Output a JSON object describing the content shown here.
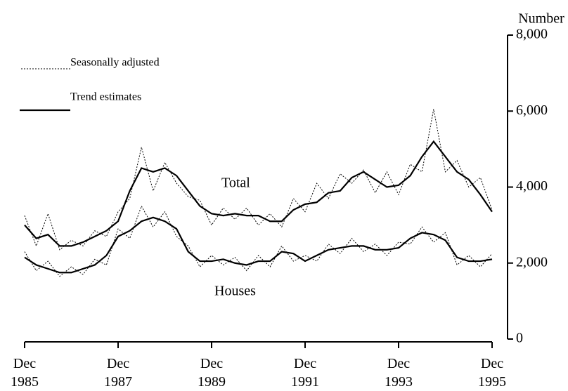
{
  "chart_data": {
    "type": "line",
    "y_label": "Number",
    "x": [
      1985.92,
      1986.17,
      1986.42,
      1986.67,
      1986.92,
      1987.17,
      1987.42,
      1987.67,
      1987.92,
      1988.17,
      1988.42,
      1988.67,
      1988.92,
      1989.17,
      1989.42,
      1989.67,
      1989.92,
      1990.17,
      1990.42,
      1990.67,
      1990.92,
      1991.17,
      1991.42,
      1991.67,
      1991.92,
      1992.17,
      1992.42,
      1992.67,
      1992.92,
      1993.17,
      1993.42,
      1993.67,
      1993.92,
      1994.17,
      1994.42,
      1994.67,
      1994.92,
      1995.17,
      1995.42,
      1995.67,
      1995.92
    ],
    "xlim": [
      1985.92,
      1995.92
    ],
    "xticks": [
      {
        "value": 1985.92,
        "label": "Dec 1985"
      },
      {
        "value": 1987.92,
        "label": "Dec 1987"
      },
      {
        "value": 1989.92,
        "label": "Dec 1989"
      },
      {
        "value": 1991.92,
        "label": "Dec 1991"
      },
      {
        "value": 1993.92,
        "label": "Dec 1993"
      },
      {
        "value": 1995.92,
        "label": "Dec 1995"
      }
    ],
    "ylim": [
      0,
      8000
    ],
    "yticks": [
      0,
      {
        "value": 2000,
        "label": "2,000"
      },
      {
        "value": 4000,
        "label": "4,000"
      },
      {
        "value": 6000,
        "label": "6,000"
      },
      {
        "value": 8000,
        "label": "8,000"
      }
    ],
    "legend": [
      {
        "name": "Seasonally adjusted",
        "style": "dotted"
      },
      {
        "name": "Trend estimates",
        "style": "solid"
      }
    ],
    "annotations": [
      "Total",
      "Houses"
    ],
    "series": [
      {
        "style": "dotted",
        "color": "#000000",
        "values": [
          3250,
          2450,
          3300,
          2350,
          2600,
          2450,
          2850,
          2700,
          3350,
          3700,
          5050,
          3900,
          4650,
          4100,
          3750,
          3650,
          3000,
          3450,
          3150,
          3450,
          3000,
          3300,
          2950,
          3700,
          3350,
          4100,
          3700,
          4350,
          4100,
          4450,
          3850,
          4400,
          3800,
          4600,
          4400,
          6050,
          4400,
          4700,
          4000,
          4250,
          3400
        ]
      },
      {
        "style": "solid",
        "color": "#000000",
        "values": [
          3000,
          2650,
          2750,
          2450,
          2450,
          2550,
          2700,
          2850,
          3100,
          3900,
          4500,
          4400,
          4500,
          4300,
          3900,
          3500,
          3300,
          3250,
          3300,
          3250,
          3250,
          3100,
          3100,
          3400,
          3550,
          3600,
          3850,
          3900,
          4250,
          4400,
          4200,
          4000,
          4050,
          4300,
          4800,
          5200,
          4800,
          4400,
          4200,
          3800,
          3350
        ]
      },
      {
        "style": "dotted",
        "color": "#000000",
        "values": [
          2300,
          1800,
          2050,
          1650,
          1900,
          1700,
          2100,
          1950,
          2900,
          2650,
          3500,
          2950,
          3350,
          2700,
          2450,
          1900,
          2200,
          1950,
          2150,
          1800,
          2200,
          1900,
          2450,
          2050,
          2200,
          2050,
          2500,
          2250,
          2650,
          2300,
          2500,
          2200,
          2550,
          2500,
          2950,
          2550,
          2800,
          1950,
          2200,
          1900,
          2250
        ]
      },
      {
        "style": "solid",
        "color": "#000000",
        "values": [
          2150,
          1950,
          1850,
          1750,
          1750,
          1850,
          1950,
          2200,
          2700,
          2850,
          3100,
          3200,
          3100,
          2900,
          2300,
          2050,
          2050,
          2100,
          2000,
          1950,
          2050,
          2050,
          2300,
          2250,
          2050,
          2200,
          2350,
          2400,
          2450,
          2450,
          2350,
          2350,
          2400,
          2650,
          2800,
          2750,
          2600,
          2150,
          2050,
          2050,
          2100
        ]
      }
    ]
  }
}
